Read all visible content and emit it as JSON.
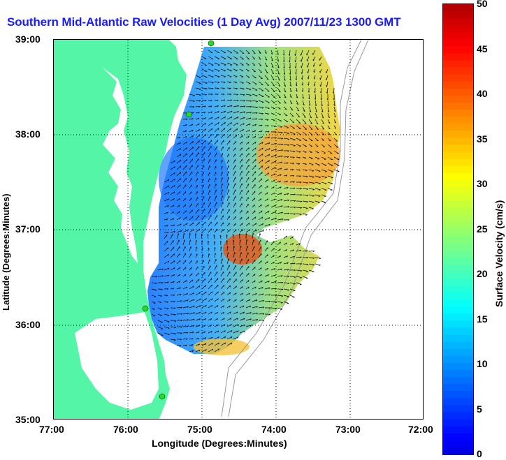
{
  "title": "Southern Mid-Atlantic Raw Velocities (1 Day Avg) 2007/11/23 1300 GMT",
  "x_axis": {
    "label": "Longitude (Degrees:Minutes)",
    "ticks": [
      "77:00",
      "76:00",
      "75:00",
      "74:00",
      "73:00",
      "72:00"
    ]
  },
  "y_axis": {
    "label": "Latitude (Degrees:Minutes)",
    "ticks": [
      "39:00",
      "38:00",
      "37:00",
      "36:00",
      "35:00"
    ]
  },
  "colorbar": {
    "label": "Surface Velocity (cm/s)",
    "ticks": [
      "50",
      "45",
      "40",
      "35",
      "30",
      "25",
      "20",
      "15",
      "10",
      "5",
      "0"
    ],
    "min": 0,
    "max": 50
  },
  "colors": {
    "land": "#55f5a8",
    "water": "#ffffff",
    "title": "#1a1aff",
    "station": "#22dd22",
    "bathymetry": "#999999"
  },
  "map_extent": {
    "lon_min": -77,
    "lon_max": -72,
    "lat_min": 35,
    "lat_max": 39
  }
}
